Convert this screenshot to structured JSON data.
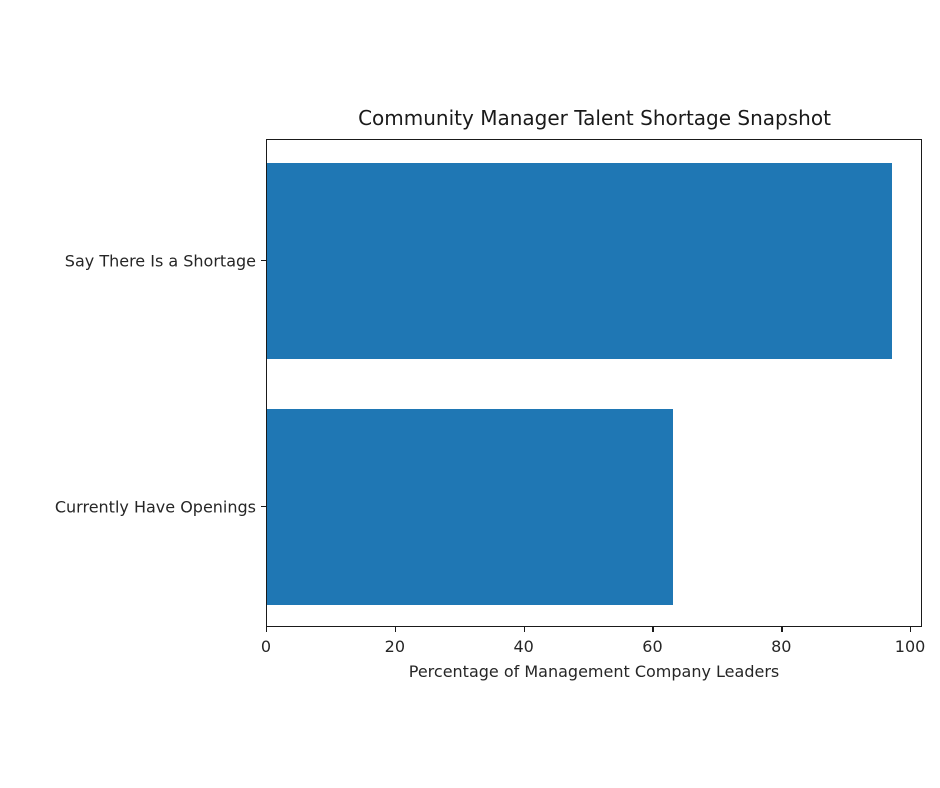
{
  "chart_data": {
    "type": "bar",
    "orientation": "horizontal",
    "title": "Community Manager Talent Shortage Snapshot",
    "xlabel": "Percentage of Management Company Leaders",
    "ylabel": "",
    "categories": [
      "Say There Is a Shortage",
      "Currently Have Openings"
    ],
    "values": [
      97,
      63
    ],
    "xlim": [
      0,
      101.85
    ],
    "xticks": [
      "0",
      "20",
      "40",
      "60",
      "80",
      "100"
    ],
    "grid": false,
    "legend": null,
    "bar_color": "#1f77b4"
  }
}
